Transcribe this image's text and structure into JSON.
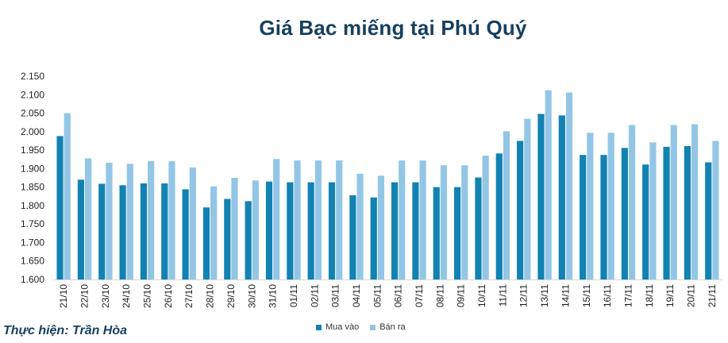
{
  "chart_data": {
    "type": "bar",
    "title": "Giá Bạc miếng tại Phú Quý",
    "categories": [
      "21/10",
      "22/10",
      "23/10",
      "24/10",
      "25/10",
      "26/10",
      "27/10",
      "28/10",
      "29/10",
      "30/10",
      "31/10",
      "01/11",
      "02/11",
      "03/11",
      "04/11",
      "05/11",
      "06/11",
      "07/11",
      "08/11",
      "09/11",
      "10/11",
      "11/11",
      "12/11",
      "13/11",
      "14/11",
      "15/11",
      "16/11",
      "17/11",
      "18/11",
      "19/11",
      "20/11",
      "21/11"
    ],
    "series": [
      {
        "name": "Mua vào",
        "color": "#1282b3",
        "values": [
          1988,
          1870,
          1859,
          1855,
          1860,
          1860,
          1844,
          1795,
          1818,
          1812,
          1865,
          1863,
          1863,
          1863,
          1828,
          1822,
          1863,
          1863,
          1850,
          1850,
          1876,
          1941,
          1975,
          2048,
          2044,
          1937,
          1937,
          1956,
          1911,
          1959,
          1961,
          1917
        ]
      },
      {
        "name": "Bán ra",
        "color": "#93c6e6",
        "values": [
          2050,
          1928,
          1916,
          1913,
          1920,
          1920,
          1903,
          1852,
          1875,
          1868,
          1926,
          1922,
          1922,
          1922,
          1886,
          1881,
          1922,
          1922,
          1909,
          1909,
          1935,
          2001,
          2035,
          2112,
          2106,
          1997,
          1997,
          2018,
          1971,
          2018,
          2020,
          1975
        ]
      }
    ],
    "ylim": [
      1600,
      2150
    ],
    "yticks": [
      1600,
      1650,
      1700,
      1750,
      1800,
      1850,
      1900,
      1950,
      2000,
      2050,
      2100,
      2150
    ],
    "ytick_labels": [
      "1.600",
      "1.650",
      "1.700",
      "1.750",
      "1.800",
      "1.850",
      "1.900",
      "1.950",
      "2.000",
      "2.050",
      "2.100",
      "2.150"
    ],
    "xlabel": "",
    "ylabel": "",
    "grid": false,
    "legend_position": "bottom"
  },
  "credit": "Thực hiện: Trần Hòa"
}
